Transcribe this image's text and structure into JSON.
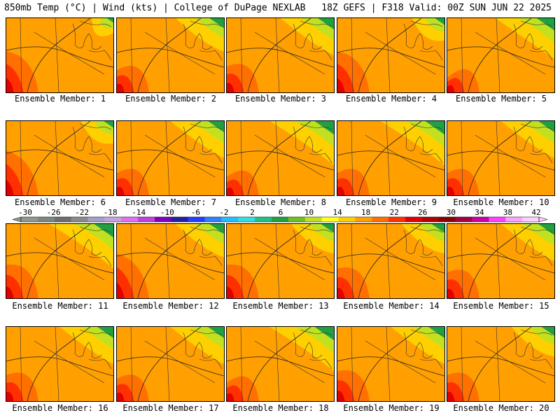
{
  "header": {
    "left": "850mb Temp (°C) | Wind (kts) | College of DuPage NEXLAB",
    "right": "18Z GEFS | F318 Valid: 00Z SUN JUN 22 2025"
  },
  "caption_prefix": "Ensemble Member:",
  "panels": [
    {
      "member": "1",
      "w": 0.2,
      "h": 0.55,
      "sw": 0.2
    },
    {
      "member": "2",
      "w": 0.45,
      "h": 0.3,
      "sw": 0.3
    },
    {
      "member": "3",
      "w": 0.5,
      "h": 0.35,
      "sw": 0.3
    },
    {
      "member": "4",
      "w": 0.3,
      "h": 0.55,
      "sw": 0.3
    },
    {
      "member": "5",
      "w": 0.55,
      "h": 0.2,
      "sw": 0.2
    },
    {
      "member": "6",
      "w": 0.3,
      "h": 0.6,
      "sw": 0.2
    },
    {
      "member": "7",
      "w": 0.5,
      "h": 0.3,
      "sw": 0.2
    },
    {
      "member": "8",
      "w": 0.6,
      "h": 0.25,
      "sw": 0.3
    },
    {
      "member": "9",
      "w": 0.6,
      "h": 0.3,
      "sw": 0.3
    },
    {
      "member": "10",
      "w": 0.5,
      "h": 0.3,
      "sw": 0.3
    },
    {
      "member": "11",
      "w": 0.6,
      "h": 0.45,
      "sw": 0.2
    },
    {
      "member": "12",
      "w": 0.45,
      "h": 0.6,
      "sw": 0.2
    },
    {
      "member": "13",
      "w": 0.4,
      "h": 0.45,
      "sw": 0.2
    },
    {
      "member": "14",
      "w": 0.4,
      "h": 0.4,
      "sw": 0.3
    },
    {
      "member": "15",
      "w": 0.5,
      "h": 0.35,
      "sw": 0.3
    },
    {
      "member": "16",
      "w": 0.5,
      "h": 0.35,
      "sw": 0.3
    },
    {
      "member": "17",
      "w": 0.5,
      "h": 0.3,
      "sw": 0.3
    },
    {
      "member": "18",
      "w": 0.6,
      "h": 0.25,
      "sw": 0.3
    },
    {
      "member": "19",
      "w": 0.5,
      "h": 0.4,
      "sw": 0.3
    },
    {
      "member": "20",
      "w": 0.4,
      "h": 0.35,
      "sw": 0.3
    }
  ],
  "colorbar": {
    "labels": [
      "-30",
      "-26",
      "-22",
      "-18",
      "-14",
      "-10",
      "-6",
      "-2",
      "2",
      "6",
      "10",
      "14",
      "18",
      "22",
      "26",
      "30",
      "34",
      "38",
      "42"
    ],
    "colors": [
      "#8c9a8c",
      "#7a8a7a",
      "#6e6e6e",
      "#8a8a8a",
      "#a0a0c8",
      "#c8a0e0",
      "#e070f0",
      "#c040e0",
      "#8000c0",
      "#2020a0",
      "#2040ff",
      "#3080ff",
      "#20c0ff",
      "#30e0e0",
      "#20c080",
      "#20a040",
      "#70c020",
      "#c0e020",
      "#ffff20",
      "#ffd000",
      "#ffa000",
      "#ff7000",
      "#ff3000",
      "#e00000",
      "#b00000",
      "#8a0000",
      "#a00040",
      "#d000a0",
      "#ff40ff",
      "#ffa0ff",
      "#ffd0ff"
    ]
  }
}
